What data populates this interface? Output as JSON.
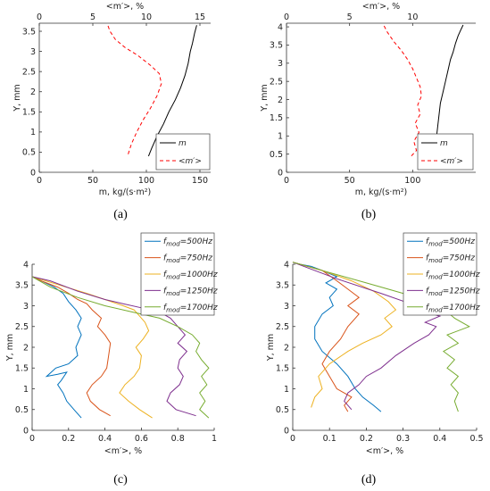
{
  "chart_data": [
    {
      "panel": "a",
      "caption": "(a)",
      "type": "line",
      "ylabel": "Y, mm",
      "ylim": [
        0,
        3.7
      ],
      "yticks": [
        "0",
        "0.5",
        "1",
        "1.5",
        "2",
        "2.5",
        "3",
        "3.5"
      ],
      "xlabel_bottom": "m, kg/(s·m²)",
      "xlim_bottom": [
        0,
        160
      ],
      "xticks_bottom": [
        "0",
        "50",
        "100",
        "150"
      ],
      "xlabel_top": "<m′>, %",
      "xlim_top": [
        0,
        16
      ],
      "xticks_top": [
        "0",
        "5",
        "10",
        "15"
      ],
      "legend_position": "bottom-right",
      "series": [
        {
          "name": "m",
          "axis": "bottom",
          "color": "#000000",
          "dash": "",
          "x": [
            102,
            105,
            110,
            116,
            121,
            127,
            132,
            136,
            139,
            141,
            143,
            145,
            147
          ],
          "y": [
            0.4,
            0.6,
            0.9,
            1.2,
            1.5,
            1.8,
            2.1,
            2.4,
            2.7,
            3.0,
            3.2,
            3.45,
            3.65
          ]
        },
        {
          "name": "<m′>",
          "axis": "top",
          "color": "#ff0000",
          "dash": "4,3",
          "x": [
            8.3,
            8.6,
            9.1,
            9.7,
            10.4,
            11.0,
            11.4,
            11.2,
            10.4,
            9.2,
            8.0,
            7.1,
            6.6,
            6.4
          ],
          "y": [
            0.45,
            0.7,
            1.0,
            1.3,
            1.6,
            1.9,
            2.2,
            2.45,
            2.65,
            2.9,
            3.1,
            3.3,
            3.5,
            3.65
          ]
        }
      ]
    },
    {
      "panel": "b",
      "caption": "(b)",
      "type": "line",
      "ylabel": "Y, mm",
      "ylim": [
        0,
        4.1
      ],
      "yticks": [
        "0",
        "0.5",
        "1",
        "1.5",
        "2",
        "2.5",
        "3",
        "3.5",
        "4"
      ],
      "xlabel_bottom": "m, kg/(s·m²)",
      "xlim_bottom": [
        0,
        150
      ],
      "xticks_bottom": [
        "0",
        "50",
        "100"
      ],
      "xlabel_top": "<m′>, %",
      "xlim_top": [
        0,
        15
      ],
      "xticks_top": [
        "0",
        "5",
        "10"
      ],
      "legend_position": "bottom-right",
      "series": [
        {
          "name": "m",
          "axis": "bottom",
          "color": "#000000",
          "dash": "",
          "x": [
            117,
            118,
            119,
            120,
            121,
            122,
            124,
            126,
            128,
            130,
            132,
            134,
            136,
            138,
            140
          ],
          "y": [
            0.45,
            0.7,
            1.0,
            1.3,
            1.6,
            1.9,
            2.2,
            2.5,
            2.8,
            3.1,
            3.3,
            3.55,
            3.75,
            3.9,
            4.05
          ]
        },
        {
          "name": "<m′>",
          "axis": "top",
          "color": "#ff0000",
          "dash": "4,3",
          "x": [
            9.9,
            10.3,
            10.1,
            10.5,
            10.2,
            10.6,
            10.4,
            10.7,
            10.6,
            10.3,
            10.0,
            9.6,
            9.1,
            8.5,
            8.0,
            7.7
          ],
          "y": [
            0.45,
            0.6,
            0.85,
            1.1,
            1.35,
            1.6,
            1.85,
            2.1,
            2.35,
            2.6,
            2.85,
            3.1,
            3.35,
            3.6,
            3.85,
            4.05
          ]
        }
      ]
    },
    {
      "panel": "c",
      "caption": "(c)",
      "type": "line",
      "ylabel": "Y, mm",
      "ylim": [
        0,
        4
      ],
      "yticks": [
        "0",
        "0.5",
        "1",
        "1.5",
        "2",
        "2.5",
        "3",
        "3.5",
        "4"
      ],
      "xlabel": "<m′>, %",
      "xlim": [
        0,
        1
      ],
      "xticks": [
        "0",
        "0.2",
        "0.4",
        "0.6",
        "0.8",
        "1"
      ],
      "legend_position": "top-right",
      "series": [
        {
          "name": "f_mod=500Hz",
          "color": "#0072BD",
          "x": [
            0.27,
            0.23,
            0.19,
            0.17,
            0.14,
            0.16,
            0.19,
            0.14,
            0.08,
            0.13,
            0.2,
            0.25,
            0.24,
            0.27,
            0.25,
            0.27,
            0.24,
            0.2,
            0.17,
            0.12,
            0.05,
            0.0
          ],
          "y": [
            0.3,
            0.5,
            0.7,
            0.9,
            1.1,
            1.2,
            1.4,
            1.35,
            1.3,
            1.5,
            1.6,
            1.8,
            2.0,
            2.3,
            2.5,
            2.7,
            2.9,
            3.1,
            3.3,
            3.45,
            3.6,
            3.7
          ]
        },
        {
          "name": "f_mod=750Hz",
          "color": "#D95319",
          "x": [
            0.43,
            0.37,
            0.32,
            0.3,
            0.33,
            0.38,
            0.41,
            0.42,
            0.43,
            0.4,
            0.36,
            0.38,
            0.33,
            0.3,
            0.25,
            0.2,
            0.14,
            0.05,
            0.0
          ],
          "y": [
            0.35,
            0.5,
            0.7,
            0.9,
            1.1,
            1.3,
            1.5,
            1.8,
            2.1,
            2.3,
            2.5,
            2.7,
            2.9,
            3.05,
            3.15,
            3.3,
            3.45,
            3.6,
            3.7
          ]
        },
        {
          "name": "f_mod=1000Hz",
          "color": "#EDB120",
          "x": [
            0.66,
            0.59,
            0.53,
            0.48,
            0.51,
            0.56,
            0.59,
            0.6,
            0.57,
            0.61,
            0.64,
            0.62,
            0.59,
            0.56,
            0.5,
            0.4,
            0.3,
            0.15,
            0.0
          ],
          "y": [
            0.3,
            0.5,
            0.7,
            0.9,
            1.1,
            1.3,
            1.5,
            1.8,
            2.0,
            2.2,
            2.4,
            2.6,
            2.75,
            2.9,
            3.0,
            3.15,
            3.3,
            3.5,
            3.7
          ]
        },
        {
          "name": "f_mod=1250Hz",
          "color": "#7E2F8E",
          "x": [
            0.9,
            0.79,
            0.74,
            0.76,
            0.81,
            0.83,
            0.8,
            0.81,
            0.85,
            0.8,
            0.84,
            0.8,
            0.76,
            0.7,
            0.6,
            0.5,
            0.4,
            0.25,
            0.1,
            0.0
          ],
          "y": [
            0.35,
            0.5,
            0.7,
            0.9,
            1.1,
            1.3,
            1.5,
            1.7,
            1.9,
            2.1,
            2.3,
            2.5,
            2.7,
            2.85,
            2.95,
            3.05,
            3.15,
            3.35,
            3.6,
            3.7
          ]
        },
        {
          "name": "f_mod=1700Hz",
          "color": "#77AC30",
          "x": [
            0.97,
            0.92,
            0.95,
            0.92,
            0.96,
            0.93,
            0.97,
            0.93,
            0.9,
            0.92,
            0.88,
            0.8,
            0.7,
            0.55,
            0.4,
            0.25,
            0.1,
            0.0
          ],
          "y": [
            0.3,
            0.5,
            0.7,
            0.9,
            1.1,
            1.3,
            1.5,
            1.7,
            1.9,
            2.1,
            2.3,
            2.5,
            2.7,
            2.85,
            3.0,
            3.2,
            3.45,
            3.7
          ]
        }
      ]
    },
    {
      "panel": "d",
      "caption": "(d)",
      "type": "line",
      "ylabel": "Y, mm",
      "ylim": [
        0,
        4
      ],
      "yticks": [
        "0",
        "0.5",
        "1",
        "1.5",
        "2",
        "2.5",
        "3",
        "3.5",
        "4"
      ],
      "xlabel": "<m′>, %",
      "xlim": [
        0,
        0.5
      ],
      "xticks": [
        "0",
        "0.1",
        "0.2",
        "0.3",
        "0.4",
        "0.5"
      ],
      "legend_position": "top-right",
      "series": [
        {
          "name": "f_mod=500Hz",
          "color": "#0072BD",
          "x": [
            0.24,
            0.22,
            0.19,
            0.17,
            0.15,
            0.12,
            0.08,
            0.06,
            0.06,
            0.08,
            0.11,
            0.1,
            0.12,
            0.09,
            0.12,
            0.08,
            0.05,
            0.02,
            0.0
          ],
          "y": [
            0.45,
            0.6,
            0.8,
            1.0,
            1.3,
            1.6,
            1.9,
            2.2,
            2.5,
            2.8,
            3.0,
            3.2,
            3.4,
            3.55,
            3.7,
            3.85,
            3.95,
            4.0,
            4.05
          ]
        },
        {
          "name": "f_mod=750Hz",
          "color": "#D95319",
          "x": [
            0.15,
            0.14,
            0.16,
            0.12,
            0.1,
            0.08,
            0.1,
            0.13,
            0.15,
            0.18,
            0.15,
            0.18,
            0.15,
            0.12,
            0.08,
            0.0
          ],
          "y": [
            0.45,
            0.6,
            0.8,
            1.0,
            1.3,
            1.6,
            1.9,
            2.2,
            2.5,
            2.8,
            3.0,
            3.2,
            3.4,
            3.6,
            3.85,
            4.05
          ]
        },
        {
          "name": "f_mod=1000Hz",
          "color": "#EDB120",
          "x": [
            0.05,
            0.06,
            0.08,
            0.07,
            0.1,
            0.15,
            0.19,
            0.24,
            0.27,
            0.25,
            0.28,
            0.26,
            0.22,
            0.16,
            0.08,
            0.0
          ],
          "y": [
            0.55,
            0.8,
            1.0,
            1.3,
            1.6,
            1.9,
            2.1,
            2.3,
            2.5,
            2.7,
            2.9,
            3.1,
            3.35,
            3.6,
            3.85,
            4.05
          ]
        },
        {
          "name": "f_mod=1250Hz",
          "color": "#7E2F8E",
          "x": [
            0.16,
            0.14,
            0.15,
            0.18,
            0.2,
            0.24,
            0.28,
            0.33,
            0.37,
            0.39,
            0.36,
            0.4,
            0.36,
            0.32,
            0.24,
            0.12,
            0.0
          ],
          "y": [
            0.5,
            0.7,
            0.9,
            1.1,
            1.3,
            1.5,
            1.8,
            2.1,
            2.3,
            2.5,
            2.6,
            2.75,
            2.85,
            3.05,
            3.3,
            3.65,
            4.05
          ]
        },
        {
          "name": "f_mod=1700Hz",
          "color": "#77AC30",
          "x": [
            0.45,
            0.44,
            0.45,
            0.43,
            0.45,
            0.42,
            0.44,
            0.41,
            0.45,
            0.42,
            0.48,
            0.44,
            0.42,
            0.38,
            0.3,
            0.2,
            0.1,
            0.0
          ],
          "y": [
            0.45,
            0.7,
            0.9,
            1.1,
            1.3,
            1.5,
            1.7,
            1.9,
            2.1,
            2.3,
            2.5,
            2.7,
            2.85,
            3.05,
            3.3,
            3.55,
            3.8,
            4.05
          ]
        }
      ]
    }
  ]
}
